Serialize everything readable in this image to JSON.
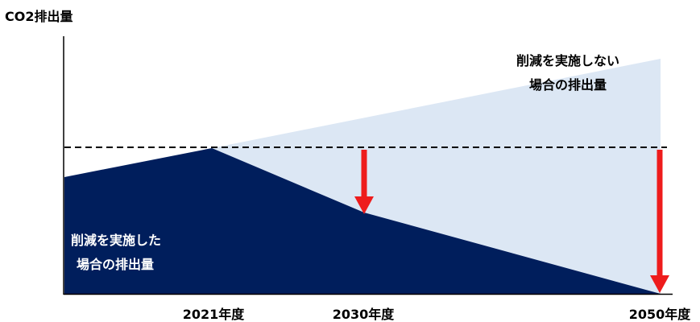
{
  "y_axis_label": "CO2排出量",
  "labels": {
    "no_reduction_line1": "削減を実施しない",
    "no_reduction_line2": "場合の排出量",
    "with_reduction_line1": "削減を実施した",
    "with_reduction_line2": "場合の排出量"
  },
  "x_ticks": [
    "2021年度",
    "2030年度",
    "2050年度"
  ],
  "colors": {
    "with_reduction_fill": "#001e5c",
    "no_reduction_fill": "#dce7f4",
    "arrow": "#ee1c1c",
    "baseline_dash": "#000000",
    "axis": "#000000"
  }
}
